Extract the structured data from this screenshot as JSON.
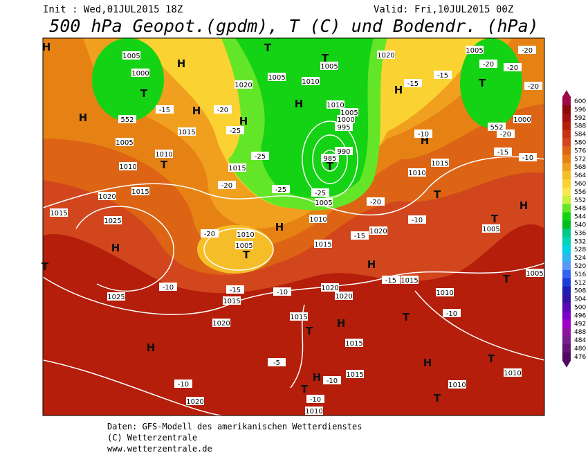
{
  "header": {
    "init": "Init : Wed,01JUL2015 18Z",
    "valid": "Valid: Fri,10JUL2015 00Z",
    "title": "500 hPa Geopot.(gpdm), T (C) und Bodendr. (hPa)"
  },
  "colorbar": {
    "ticks": [
      600,
      596,
      592,
      588,
      584,
      580,
      576,
      572,
      568,
      564,
      560,
      556,
      552,
      548,
      544,
      540,
      536,
      532,
      528,
      524,
      520,
      516,
      512,
      508,
      504,
      500,
      496,
      492,
      488,
      484,
      480,
      476
    ],
    "colors": [
      "#9c0a4a",
      "#8a0a0a",
      "#a01010",
      "#b41e0a",
      "#c83214",
      "#d2461e",
      "#dc6414",
      "#e68214",
      "#f0a01e",
      "#f5be28",
      "#fad232",
      "#fae650",
      "#c8f03c",
      "#64e628",
      "#14d214",
      "#00be1e",
      "#00c88c",
      "#00d2b4",
      "#00d2e6",
      "#32b4f0",
      "#5a96f5",
      "#3264f0",
      "#1e3cdc",
      "#1e1eb4",
      "#3214a0",
      "#5a0ab4",
      "#7800c8",
      "#a000c8",
      "#8c14a0",
      "#781e8c",
      "#641478",
      "#500a64"
    ]
  },
  "map_labels": [
    "H",
    "1005",
    "1000",
    "T",
    "H",
    "H",
    "H",
    "1015",
    "1005",
    "1010",
    "T",
    "1010",
    "1015",
    "1020",
    "1015",
    "1025",
    "H",
    "T",
    "1025",
    "H",
    "1020",
    "-10",
    "1010",
    "1005",
    "T",
    "H",
    "1015",
    "1020",
    "-15",
    "-10",
    "-20",
    "-20",
    "1015",
    "-25",
    "H",
    "1020",
    "1005",
    "T",
    "H",
    "T",
    "1005",
    "1010",
    "1010",
    "1005",
    "1000",
    "995",
    "990",
    "985",
    "T",
    "-25",
    "1005",
    "1010",
    "-20",
    "1015",
    "1020",
    "-15",
    "H",
    "1020",
    "1020",
    "-15",
    "1015",
    "-10",
    "1015",
    "T",
    "H",
    "-5",
    "1015",
    "1015",
    "H",
    "-10",
    "1010",
    "T",
    "-10",
    "T",
    "H",
    "T",
    "1010",
    "T",
    "1010",
    "1010",
    "-10",
    "T",
    "1005",
    "1005",
    "T",
    "T",
    "-10",
    "1010",
    "1015",
    "H",
    "-10",
    "1020",
    "H",
    "-15",
    "-15",
    "1005",
    "T",
    "-20",
    "-20",
    "-20",
    "-20",
    "1000",
    "552",
    "-20",
    "-15",
    "-10",
    "H",
    "552",
    "-15",
    "-20",
    "-25",
    "-25"
  ],
  "footer": [
    "Daten: GFS-Modell des amerikanischen Wetterdienstes",
    "(C) Wetterzentrale",
    "www.wetterzentrale.de"
  ]
}
